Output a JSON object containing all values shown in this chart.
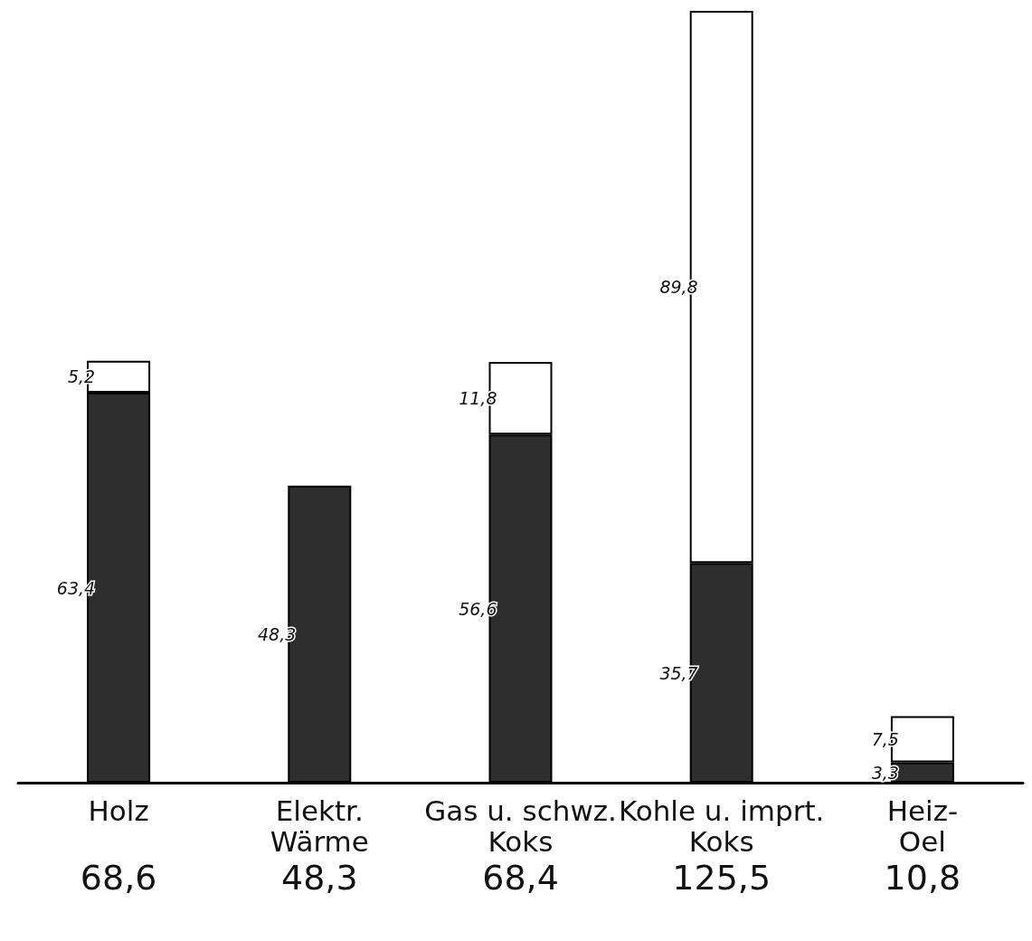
{
  "chart_data": {
    "type": "bar",
    "stacked": true,
    "categories": [
      "Holz",
      "Elektr.\nWärme",
      "Gas u. schwz.\nKoks",
      "Kohle u. imprt.\nKoks",
      "Heiz-\nOel"
    ],
    "series": [
      {
        "color": "#2e2e2e",
        "values": [
          63.4,
          48.3,
          56.6,
          35.7,
          3.3
        ],
        "value_labels": [
          "63,4",
          "48,3",
          "56,6",
          "35,7",
          "3,3"
        ]
      },
      {
        "color": "#ffffff",
        "values": [
          5.2,
          null,
          11.8,
          89.8,
          7.5
        ],
        "value_labels": [
          "5,2",
          null,
          "11,8",
          "89,8",
          "7,5"
        ]
      }
    ],
    "totals": [
      "68,6",
      "48,3",
      "68,4",
      "125,5",
      "10,8"
    ],
    "grid": false
  }
}
